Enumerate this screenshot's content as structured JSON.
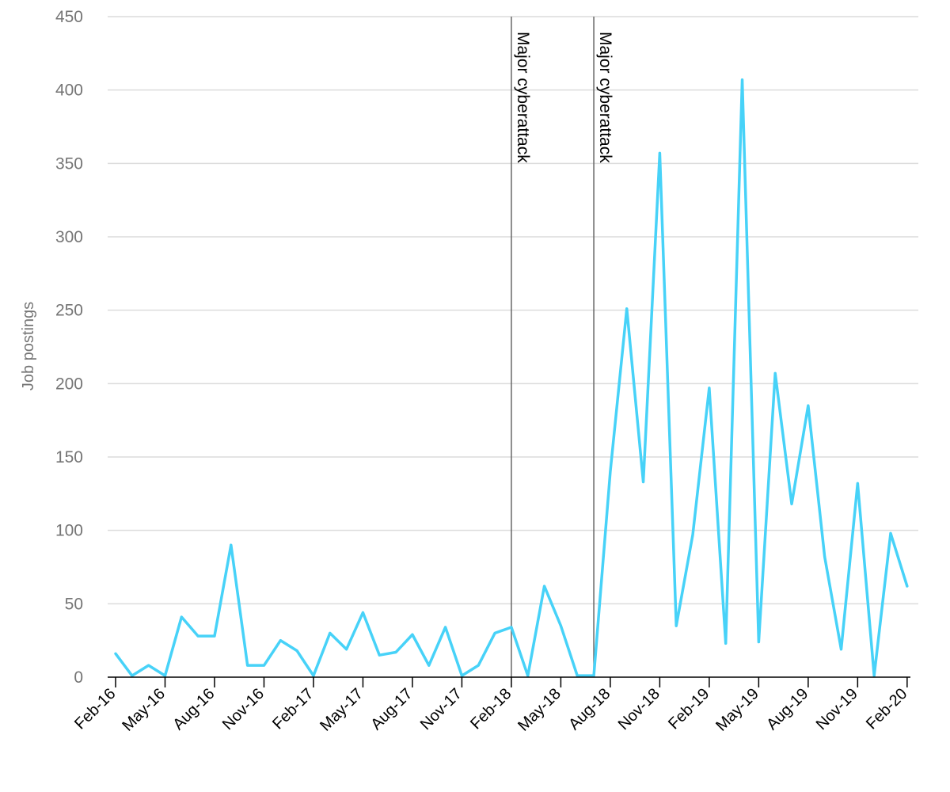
{
  "chart_data": {
    "type": "line",
    "title": "",
    "xlabel": "",
    "ylabel": "Job postings",
    "ylim": [
      0,
      450
    ],
    "yticks": [
      0,
      50,
      100,
      150,
      200,
      250,
      300,
      350,
      400,
      450
    ],
    "grid": true,
    "legend": "none",
    "x_tick_labels": [
      "Feb-16",
      "May-16",
      "Aug-16",
      "Nov-16",
      "Feb-17",
      "May-17",
      "Aug-17",
      "Nov-17",
      "Feb-18",
      "May-18",
      "Aug-18",
      "Nov-18",
      "Feb-19",
      "May-19",
      "Aug-19",
      "Nov-19",
      "Feb-20"
    ],
    "x": [
      "Feb-16",
      "Mar-16",
      "Apr-16",
      "May-16",
      "Jun-16",
      "Jul-16",
      "Aug-16",
      "Sep-16",
      "Oct-16",
      "Nov-16",
      "Dec-16",
      "Jan-17",
      "Feb-17",
      "Mar-17",
      "Apr-17",
      "May-17",
      "Jun-17",
      "Jul-17",
      "Aug-17",
      "Sep-17",
      "Oct-17",
      "Nov-17",
      "Dec-17",
      "Jan-18",
      "Feb-18",
      "Mar-18",
      "Apr-18",
      "May-18",
      "Jun-18",
      "Jul-18",
      "Aug-18",
      "Sep-18",
      "Oct-18",
      "Nov-18",
      "Dec-18",
      "Jan-19",
      "Feb-19",
      "Mar-19",
      "Apr-19",
      "May-19",
      "Jun-19",
      "Jul-19",
      "Aug-19",
      "Sep-19",
      "Oct-19",
      "Nov-19",
      "Dec-19",
      "Jan-20",
      "Feb-20"
    ],
    "series": [
      {
        "values": [
          16,
          1,
          8,
          1,
          41,
          28,
          28,
          90,
          8,
          8,
          25,
          18,
          1,
          30,
          19,
          44,
          15,
          17,
          29,
          8,
          34,
          1,
          8,
          30,
          34,
          1,
          62,
          35,
          1,
          1,
          140,
          251,
          133,
          357,
          35,
          97,
          197,
          23,
          407,
          24,
          207,
          118,
          185,
          82,
          19,
          132,
          1,
          98,
          62
        ]
      }
    ],
    "annotations": [
      {
        "label": "Major cyberattack",
        "x": "Feb-18"
      },
      {
        "label": "Major cyberattack",
        "x": "Jul-18"
      }
    ],
    "colors": {
      "series": "#47d2f8",
      "annotation": "#666666"
    }
  }
}
